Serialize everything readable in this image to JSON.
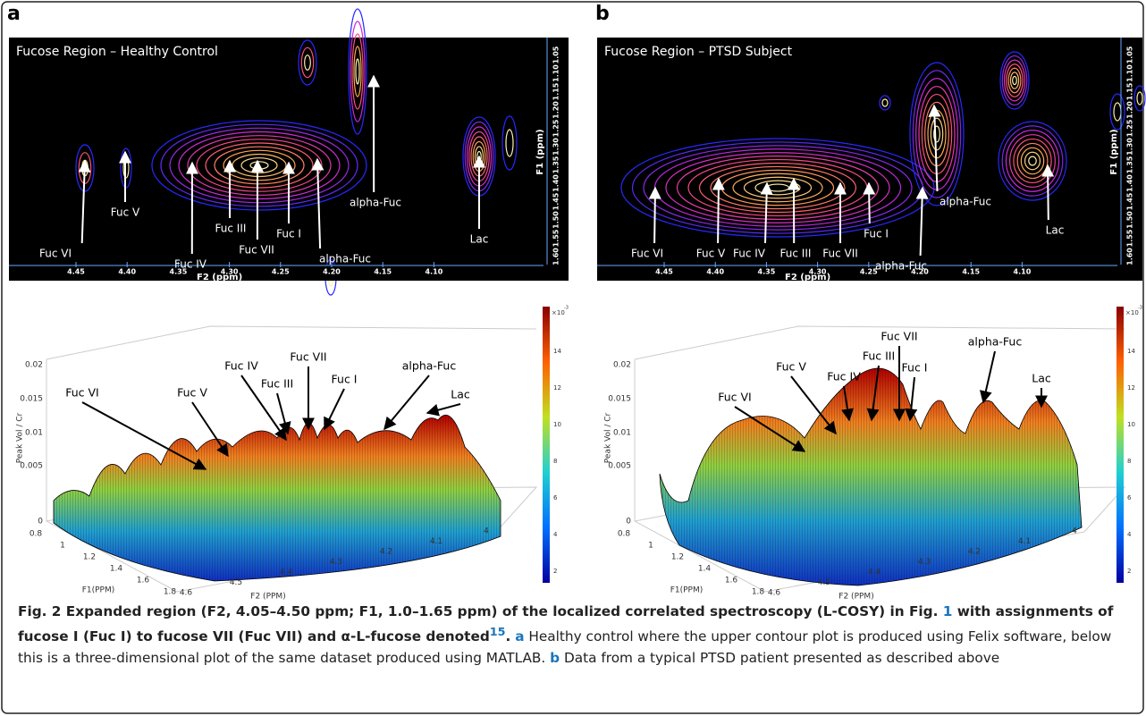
{
  "panels": [
    {
      "letter": "a",
      "contour_title": "Fucose Region – Healthy Control",
      "f2_label": "F2 (ppm)",
      "f1_label": "F1 (ppm)",
      "f2_ticks": [
        "4.45",
        "4.40",
        "4.35",
        "4.30",
        "4.25",
        "4.20",
        "4.15",
        "4.10"
      ],
      "f1_ticks": [
        "1.60",
        "1.55",
        "1.50",
        "1.45",
        "1.40",
        "1.35",
        "1.30",
        "1.25",
        "1.20",
        "1.15",
        "1.10",
        "1.05"
      ],
      "contour_labels": [
        "Fuc VI",
        "Fuc V",
        "Fuc IV",
        "Fuc III",
        "Fuc VII",
        "Fuc I",
        "alpha-Fuc",
        "alpha-Fuc",
        "Lac"
      ],
      "surface_labels": [
        "Fuc VI",
        "Fuc V",
        "Fuc IV",
        "Fuc III",
        "Fuc VII",
        "Fuc I",
        "alpha-Fuc",
        "Lac"
      ],
      "z_label": "Peak Vol / Cr",
      "z_ticks": [
        "0.02",
        "0.015",
        "0.01",
        "0.005",
        "0"
      ],
      "f1_3d_label": "F1(PPM)",
      "f1_3d_ticks": [
        "0.8",
        "1",
        "1.2",
        "1.4",
        "1.6",
        "1.8"
      ],
      "f2_3d_label": "F2 (PPM)",
      "f2_3d_ticks": [
        "4.6",
        "4.5",
        "4.4",
        "4.3",
        "4.2",
        "4.1",
        "4"
      ],
      "colorbar_ticks": [
        "14",
        "12",
        "10",
        "8",
        "6",
        "4",
        "2"
      ],
      "colorbar_base": "×10",
      "colorbar_exp": "-3"
    },
    {
      "letter": "b",
      "contour_title": "Fucose Region – PTSD Subject",
      "f2_label": "F2 (ppm)",
      "f1_label": "F1 (ppm)",
      "f2_ticks": [
        "4.45",
        "4.40",
        "4.35",
        "4.30",
        "4.25",
        "4.20",
        "4.15",
        "4.10"
      ],
      "f1_ticks": [
        "1.60",
        "1.55",
        "1.50",
        "1.45",
        "1.40",
        "1.35",
        "1.30",
        "1.25",
        "1.20",
        "1.15",
        "1.10",
        "1.05"
      ],
      "contour_labels": [
        "Fuc VI",
        "Fuc V",
        "Fuc IV",
        "Fuc III",
        "Fuc VII",
        "Fuc I",
        "alpha-Fuc",
        "alpha-Fuc",
        "Lac"
      ],
      "surface_labels": [
        "Fuc VI",
        "Fuc V",
        "Fuc IV",
        "Fuc III",
        "Fuc VII",
        "Fuc I",
        "alpha-Fuc",
        "Lac"
      ],
      "z_label": "Peak Vol / Cr",
      "z_ticks": [
        "0.02",
        "0.015",
        "0.01",
        "0.005",
        "0"
      ],
      "f1_3d_label": "F1(PPM)",
      "f1_3d_ticks": [
        "0.8",
        "1",
        "1.2",
        "1.4",
        "1.6",
        "1.8"
      ],
      "f2_3d_label": "F2 (PPM)",
      "f2_3d_ticks": [
        "4.6",
        "4.5",
        "4.4",
        "4.3",
        "4.2",
        "4.1",
        "4"
      ],
      "colorbar_ticks": [
        "14",
        "12",
        "10",
        "8",
        "6",
        "4",
        "2"
      ],
      "colorbar_base": "×10",
      "colorbar_exp": "-3"
    }
  ],
  "caption": {
    "bold1": "Fig. 2 Expanded region (F2, 4.05–4.50 ppm; F1, 1.0–1.65 ppm) of the localized correlated spectroscopy (L-COSY) in Fig. ",
    "ref": "1",
    "bold2": " with assignments of fucose I (Fuc I) to fucose VII (Fuc VII) and α-L-fucose denoted",
    "sup": "15",
    "bold3": ".",
    "a": "a",
    "text_a": " Healthy control where the upper contour plot is produced using Felix software, below this is a three-dimensional plot of the same dataset produced using MATLAB. ",
    "b": "b",
    "text_b": " Data from a typical PTSD patient presented as described above"
  }
}
